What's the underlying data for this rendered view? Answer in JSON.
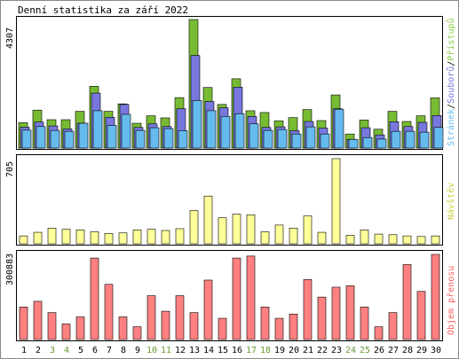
{
  "chart_data": [
    {
      "type": "bar",
      "panel": "top",
      "title": "Denní statistika za září 2022",
      "y_max_label": "4307",
      "ylim": [
        0,
        4307
      ],
      "legend_parts": [
        {
          "text": "Stránek",
          "color": "#66bbee"
        },
        {
          "text": "/",
          "color": "#000000"
        },
        {
          "text": "Souborů",
          "color": "#7777dd"
        },
        {
          "text": "/",
          "color": "#000000"
        },
        {
          "text": "Přístupů",
          "color": "#88cc44"
        }
      ],
      "categories": [
        "1",
        "2",
        "3",
        "4",
        "5",
        "6",
        "7",
        "8",
        "9",
        "10",
        "11",
        "12",
        "13",
        "14",
        "15",
        "16",
        "17",
        "18",
        "19",
        "20",
        "21",
        "22",
        "23",
        "24",
        "25",
        "26",
        "27",
        "28",
        "29",
        "30"
      ],
      "series": [
        {
          "name": "Přístupů",
          "color": "#77bb33",
          "values": [
            850,
            1270,
            950,
            950,
            1230,
            2070,
            1230,
            1480,
            830,
            1080,
            1010,
            1690,
            4307,
            2030,
            1460,
            2320,
            1250,
            1190,
            910,
            1020,
            1290,
            920,
            1780,
            470,
            940,
            630,
            1230,
            890,
            1080,
            1680
          ]
        },
        {
          "name": "Souborů",
          "color": "#7777dd",
          "values": [
            700,
            870,
            740,
            640,
            830,
            1840,
            1030,
            1460,
            690,
            810,
            720,
            1320,
            3100,
            1560,
            1350,
            2040,
            1060,
            690,
            710,
            580,
            890,
            670,
            1320,
            290,
            680,
            440,
            880,
            720,
            860,
            1090
          ]
        },
        {
          "name": "Stránek",
          "color": "#66bbee",
          "values": [
            600,
            720,
            590,
            560,
            830,
            1250,
            760,
            1130,
            590,
            680,
            650,
            580,
            1590,
            1250,
            1060,
            1150,
            810,
            590,
            620,
            470,
            710,
            470,
            1300,
            290,
            350,
            300,
            560,
            560,
            530,
            690
          ]
        }
      ]
    },
    {
      "type": "bar",
      "panel": "middle",
      "y_max_label": "705",
      "ylim": [
        0,
        705
      ],
      "series_label": "Návštěv",
      "series": [
        {
          "name": "Návštěv",
          "color": "#ffff99",
          "values": [
            65,
            95,
            130,
            120,
            115,
            100,
            85,
            90,
            115,
            120,
            110,
            125,
            275,
            395,
            215,
            245,
            240,
            100,
            155,
            130,
            230,
            95,
            705,
            70,
            115,
            80,
            75,
            65,
            60,
            65
          ]
        }
      ]
    },
    {
      "type": "bar",
      "panel": "bottom",
      "y_max_label": "300883",
      "ylim": [
        0,
        300883
      ],
      "series_label": "Objem přenosu",
      "series": [
        {
          "name": "Objem přenosu",
          "color": "#ff8080",
          "values": [
            115000,
            135000,
            95000,
            55000,
            80000,
            288000,
            195000,
            80000,
            45000,
            155000,
            100000,
            155000,
            95000,
            210000,
            75000,
            288000,
            295000,
            115000,
            75000,
            90000,
            212000,
            150000,
            185000,
            190000,
            115000,
            45000,
            95000,
            265000,
            170000,
            300883
          ]
        }
      ]
    }
  ],
  "x_labels": [
    {
      "text": "1",
      "color": "#000000"
    },
    {
      "text": "2",
      "color": "#000000"
    },
    {
      "text": "3",
      "color": "#669933"
    },
    {
      "text": "4",
      "color": "#669933"
    },
    {
      "text": "5",
      "color": "#000000"
    },
    {
      "text": "6",
      "color": "#000000"
    },
    {
      "text": "7",
      "color": "#000000"
    },
    {
      "text": "8",
      "color": "#000000"
    },
    {
      "text": "9",
      "color": "#000000"
    },
    {
      "text": "10",
      "color": "#669933"
    },
    {
      "text": "11",
      "color": "#669933"
    },
    {
      "text": "12",
      "color": "#000000"
    },
    {
      "text": "13",
      "color": "#000000"
    },
    {
      "text": "14",
      "color": "#000000"
    },
    {
      "text": "15",
      "color": "#000000"
    },
    {
      "text": "16",
      "color": "#000000"
    },
    {
      "text": "17",
      "color": "#669933"
    },
    {
      "text": "18",
      "color": "#669933"
    },
    {
      "text": "19",
      "color": "#000000"
    },
    {
      "text": "20",
      "color": "#000000"
    },
    {
      "text": "21",
      "color": "#000000"
    },
    {
      "text": "22",
      "color": "#000000"
    },
    {
      "text": "23",
      "color": "#000000"
    },
    {
      "text": "24",
      "color": "#669933"
    },
    {
      "text": "25",
      "color": "#669933"
    },
    {
      "text": "26",
      "color": "#000000"
    },
    {
      "text": "27",
      "color": "#000000"
    },
    {
      "text": "28",
      "color": "#000000"
    },
    {
      "text": "29",
      "color": "#000000"
    },
    {
      "text": "30",
      "color": "#000000"
    }
  ],
  "colors": {
    "frame": "#000000",
    "visits_label": "#cccc44",
    "volume_label": "#ff6060"
  }
}
